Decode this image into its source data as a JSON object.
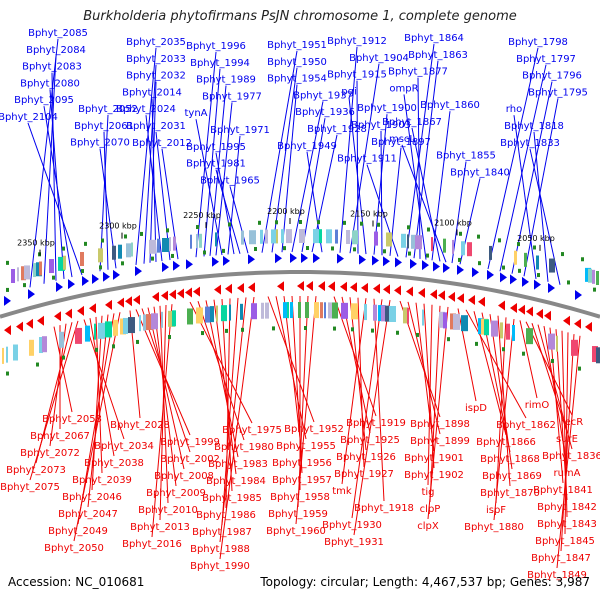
{
  "title": "Burkholderia phytofirmans PsJN chromosome 1, complete genome",
  "accession_label": "Accession: NC_010681",
  "topology_label": "Topology: circular; Length: 4,467,537 bp; Genes: 3,987",
  "colors": {
    "forward": "#0000ee",
    "reverse": "#ee0000",
    "backbone": "#888888",
    "tick": "#228822"
  },
  "scale_ticks": [
    "2350 kbp",
    "2300 kbp",
    "2250 kbp",
    "2200 kbp",
    "2150 kbp",
    "2100 kbp",
    "2050 kbp"
  ],
  "top_labels": [
    "Bphyt_2085",
    "Bphyt_2084",
    "Bphyt_2083",
    "Bphyt_2080",
    "Bphyt_2095",
    "Bphyt_2104",
    "Bphyt_2052",
    "Bphyt_2061",
    "Bphyt_2070",
    "Bphyt_2035",
    "Bphyt_2033",
    "Bphyt_2032",
    "Bphyt_2014",
    "Bphyt_2024",
    "Bphyt_2031",
    "Bphyt_2012",
    "Bphyt_1996",
    "Bphyt_1994",
    "Bphyt_1989",
    "Bphyt_1977",
    "tynA",
    "Bphyt_1971",
    "Bphyt_1995",
    "Bphyt_1981",
    "Bphyt_1965",
    "Bphyt_1951",
    "Bphyt_1950",
    "Bphyt_1954",
    "Bphyt_1937",
    "Bphyt_1936",
    "Bphyt_1928",
    "Bphyt_1949",
    "Bphyt_1912",
    "Bphyt_1904",
    "Bphyt_1915",
    "pgi",
    "Bphyt_1900",
    "Bphyt_1903",
    "Bphyt_1897",
    "Bphyt_1911",
    "Bphyt_1864",
    "Bphyt_1863",
    "Bphyt_1877",
    "ompR",
    "Bphyt_1860",
    "Bphyt_1867",
    "mscL",
    "Bphyt_1855",
    "Bphyt_1840",
    "Bphyt_1798",
    "Bphyt_1797",
    "Bphyt_1796",
    "Bphyt_1795",
    "rho",
    "Bphyt_1818",
    "Bphyt_1833"
  ],
  "bottom_labels": [
    "Bphyt_2058",
    "Bphyt_2067",
    "Bphyt_2072",
    "Bphyt_2073",
    "Bphyt_2075",
    "Bphyt_2034",
    "Bphyt_2038",
    "Bphyt_2039",
    "Bphyt_2046",
    "Bphyt_2047",
    "Bphyt_2049",
    "Bphyt_2050",
    "Bphyt_2028",
    "Bphyt_1999",
    "Bphyt_2002",
    "Bphyt_2008",
    "Bphyt_2009",
    "Bphyt_2010",
    "Bphyt_2013",
    "Bphyt_2016",
    "Bphyt_1975",
    "Bphyt_1980",
    "Bphyt_1983",
    "Bphyt_1984",
    "Bphyt_1985",
    "Bphyt_1986",
    "Bphyt_1987",
    "Bphyt_1988",
    "Bphyt_1990",
    "Bphyt_1952",
    "Bphyt_1955",
    "Bphyt_1956",
    "Bphyt_1957",
    "Bphyt_1958",
    "Bphyt_1959",
    "Bphyt_1960",
    "Bphyt_1919",
    "Bphyt_1925",
    "Bphyt_1926",
    "Bphyt_1927",
    "tmk",
    "Bphyt_1918",
    "Bphyt_1930",
    "Bphyt_1931",
    "Bphyt_1898",
    "Bphyt_1899",
    "Bphyt_1901",
    "Bphyt_1902",
    "tig",
    "clpP",
    "clpX",
    "ispD",
    "Bphyt_1862",
    "Bphyt_1866",
    "Bphyt_1868",
    "Bphyt_1869",
    "Bphyt_1870",
    "ispF",
    "Bphyt_1880",
    "rimO",
    "recR",
    "surE",
    "Bphyt_1836",
    "rumA",
    "Bphyt_1841",
    "Bphyt_1842",
    "Bphyt_1843",
    "Bphyt_1845",
    "Bphyt_1847",
    "Bphyt_1849"
  ]
}
